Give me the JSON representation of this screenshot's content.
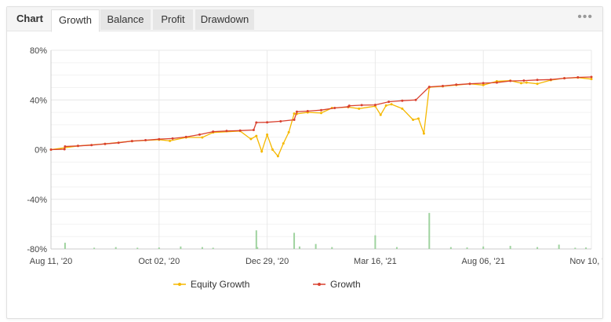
{
  "header": {
    "title": "Chart",
    "tabs": [
      {
        "label": "Growth",
        "active": true
      },
      {
        "label": "Balance",
        "active": false
      },
      {
        "label": "Profit",
        "active": false
      },
      {
        "label": "Drawdown",
        "active": false
      }
    ],
    "more_icon": "more-dots-icon"
  },
  "colors": {
    "growth": "#d9412f",
    "equity": "#f5b800",
    "volume_bar": "#9fd39f",
    "grid": "#e9e9e9"
  },
  "chart_data": {
    "type": "line",
    "x_tick_labels": [
      "Aug 11, '20",
      "Oct 02, '20",
      "Dec 29, '20",
      "Mar 16, '21",
      "Aug 06, '21",
      "Nov 10, '21"
    ],
    "y_tick_labels": [
      "80%",
      "40%",
      "0%",
      "-40%",
      "-80%"
    ],
    "ylim": [
      -80,
      80
    ],
    "xlim": [
      0,
      100
    ],
    "grid": true,
    "legend_position": "bottom",
    "series": [
      {
        "name": "Growth",
        "x": [
          0,
          2.5,
          2.6,
          5,
          7.5,
          10,
          12.5,
          15,
          17.5,
          20,
          22.5,
          25,
          27.5,
          30,
          32.5,
          35,
          37.5,
          38,
          40,
          42.5,
          45,
          45.5,
          47.5,
          50,
          52.5,
          55,
          55.2,
          57.5,
          60,
          62.5,
          65,
          67.5,
          70,
          72.5,
          75,
          77.5,
          80,
          82.5,
          85,
          87.5,
          90,
          92.5,
          95,
          97.5,
          100
        ],
        "values": [
          0,
          0.3,
          2.5,
          3,
          3.6,
          4.6,
          5.5,
          6.9,
          7.6,
          8.4,
          8.9,
          10.2,
          12.1,
          14.5,
          15,
          15.3,
          15.8,
          21.8,
          22,
          22.8,
          24,
          30.5,
          31,
          31.8,
          33.5,
          34.5,
          35.3,
          35.8,
          36,
          38.5,
          39.4,
          40,
          50.5,
          51.2,
          52.3,
          53,
          53.5,
          54,
          55.3,
          55.6,
          56.1,
          56.4,
          57.5,
          58.2,
          58.5
        ]
      },
      {
        "name": "Equity Growth",
        "x": [
          0,
          5,
          10,
          15,
          20,
          22,
          25,
          28,
          30,
          35,
          37,
          38,
          39,
          40,
          41,
          42,
          43,
          44,
          45,
          45.5,
          47.5,
          50,
          52,
          55,
          57,
          60,
          61,
          62,
          63,
          65,
          67,
          68,
          69,
          70,
          72.5,
          75,
          77.5,
          80,
          82.5,
          85,
          87,
          88,
          90,
          92.5,
          95,
          97.5,
          100
        ],
        "values": [
          0,
          3,
          4.6,
          6.8,
          8,
          7,
          9.8,
          9.8,
          13.8,
          15,
          8.5,
          11,
          -1.5,
          12,
          0,
          -5.3,
          5,
          14,
          29,
          28.8,
          30,
          29.5,
          33.5,
          34.2,
          33,
          35,
          28,
          35.5,
          36.5,
          33,
          24,
          25,
          13,
          50.2,
          51,
          52,
          53,
          52,
          55,
          55.5,
          53.5,
          54,
          53,
          56,
          57.5,
          58,
          56.8
        ]
      }
    ],
    "volume_bars": {
      "x": [
        2.6,
        8,
        12,
        16,
        20,
        24,
        28,
        30,
        38,
        38.2,
        45,
        46,
        49,
        52,
        60,
        64,
        70,
        74,
        77,
        80,
        85,
        90,
        94,
        97,
        99
      ],
      "values": [
        5,
        1,
        1.5,
        1,
        1.2,
        2,
        1.5,
        1,
        15,
        1.5,
        13,
        2,
        4,
        1.5,
        11,
        1.5,
        29,
        1.5,
        1.2,
        2,
        2.5,
        1.5,
        3.5,
        1,
        1.2
      ]
    }
  },
  "legend": {
    "items": [
      {
        "label": "Equity Growth",
        "color": "#f5b800"
      },
      {
        "label": "Growth",
        "color": "#d9412f"
      }
    ]
  }
}
